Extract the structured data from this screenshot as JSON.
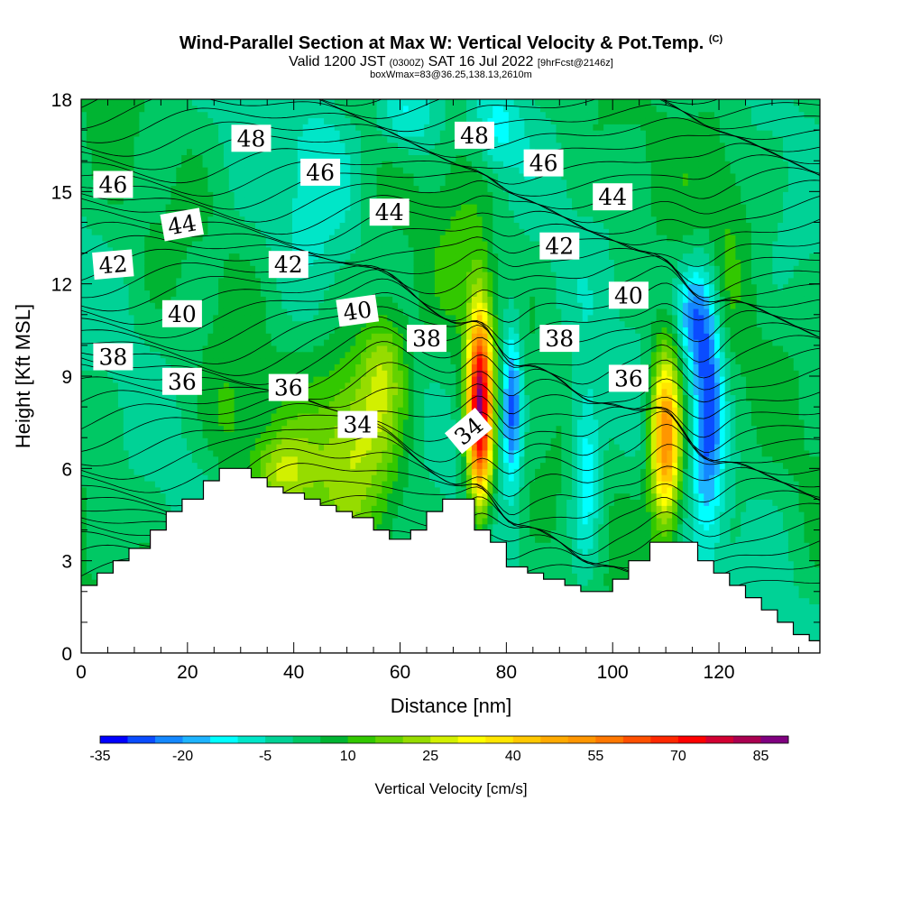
{
  "header": {
    "title": "Wind-Parallel Section at Max W: Vertical Velocity & Pot.Temp.",
    "copyright_mark": "(C)",
    "valid_main": "Valid 1200 JST",
    "valid_utc": "(0300Z)",
    "valid_date": "SAT 16 Jul 2022",
    "forecast_note": "[9hrFcst@2146z]",
    "box_note": "boxWmax=83@36.25,138.13,2610m"
  },
  "chart_data": {
    "type": "heatmap",
    "xlabel": "Distance [nm]",
    "ylabel": "Height [Kft MSL]",
    "xlim": [
      0,
      139
    ],
    "ylim": [
      0,
      18
    ],
    "x_ticks": [
      0,
      20,
      40,
      60,
      80,
      100,
      120
    ],
    "y_ticks": [
      0,
      3,
      6,
      9,
      12,
      15,
      18
    ],
    "colorbar": {
      "label": "Vertical Velocity [cm/s]",
      "tick_values": [
        -35,
        -20,
        -5,
        10,
        25,
        40,
        55,
        70,
        85
      ],
      "levels": [
        -35,
        -30,
        -25,
        -20,
        -15,
        -10,
        -5,
        0,
        5,
        10,
        15,
        20,
        25,
        30,
        35,
        40,
        45,
        50,
        55,
        60,
        65,
        70,
        75,
        80,
        85,
        90
      ],
      "colors": [
        "#0000ff",
        "#0a4cff",
        "#1488ff",
        "#1eb4ff",
        "#00ffff",
        "#00e6c8",
        "#00d296",
        "#00c864",
        "#00b432",
        "#32c800",
        "#64d200",
        "#96dc00",
        "#d2f000",
        "#ffff00",
        "#ffe600",
        "#ffc800",
        "#ffaa00",
        "#ff9600",
        "#ff7800",
        "#ff5000",
        "#ff2800",
        "#ff0000",
        "#d20032",
        "#aa0050",
        "#800080"
      ]
    },
    "terrain_height_kft": [
      {
        "x": 0,
        "h": 2.2
      },
      {
        "x": 3,
        "h": 2.6
      },
      {
        "x": 6,
        "h": 3.0
      },
      {
        "x": 9,
        "h": 3.4
      },
      {
        "x": 13,
        "h": 4.0
      },
      {
        "x": 16,
        "h": 4.6
      },
      {
        "x": 19,
        "h": 5.0
      },
      {
        "x": 23,
        "h": 5.6
      },
      {
        "x": 26,
        "h": 6.0
      },
      {
        "x": 30,
        "h": 6.0
      },
      {
        "x": 32,
        "h": 5.7
      },
      {
        "x": 35,
        "h": 5.4
      },
      {
        "x": 38,
        "h": 5.2
      },
      {
        "x": 42,
        "h": 5.0
      },
      {
        "x": 45,
        "h": 4.8
      },
      {
        "x": 48,
        "h": 4.6
      },
      {
        "x": 51,
        "h": 4.4
      },
      {
        "x": 55,
        "h": 4.0
      },
      {
        "x": 58,
        "h": 3.7
      },
      {
        "x": 62,
        "h": 4.0
      },
      {
        "x": 65,
        "h": 4.6
      },
      {
        "x": 68,
        "h": 5.0
      },
      {
        "x": 72,
        "h": 5.0
      },
      {
        "x": 74,
        "h": 4.0
      },
      {
        "x": 77,
        "h": 3.6
      },
      {
        "x": 80,
        "h": 2.8
      },
      {
        "x": 84,
        "h": 2.6
      },
      {
        "x": 87,
        "h": 2.4
      },
      {
        "x": 91,
        "h": 2.2
      },
      {
        "x": 94,
        "h": 2.0
      },
      {
        "x": 97,
        "h": 2.0
      },
      {
        "x": 100,
        "h": 2.4
      },
      {
        "x": 103,
        "h": 3.0
      },
      {
        "x": 107,
        "h": 3.6
      },
      {
        "x": 112,
        "h": 3.6
      },
      {
        "x": 116,
        "h": 3.0
      },
      {
        "x": 119,
        "h": 2.6
      },
      {
        "x": 122,
        "h": 2.2
      },
      {
        "x": 125,
        "h": 1.8
      },
      {
        "x": 128,
        "h": 1.4
      },
      {
        "x": 131,
        "h": 1.0
      },
      {
        "x": 134,
        "h": 0.6
      },
      {
        "x": 137,
        "h": 0.4
      },
      {
        "x": 139,
        "h": 0.4
      }
    ],
    "vertical_velocity_features": [
      {
        "x": 75,
        "z": 8.0,
        "sx": 1.6,
        "sz": 2.2,
        "w": 80
      },
      {
        "x": 110,
        "z": 7.0,
        "sx": 2.0,
        "sz": 2.0,
        "w": 55
      },
      {
        "x": 52,
        "z": 7.0,
        "sx": 6.0,
        "sz": 2.2,
        "w": 24
      },
      {
        "x": 57,
        "z": 9.5,
        "sx": 3.0,
        "sz": 1.5,
        "w": 16
      },
      {
        "x": 38,
        "z": 5.8,
        "sx": 4.0,
        "sz": 1.0,
        "w": 20
      },
      {
        "x": 28,
        "z": 7.5,
        "sx": 3.0,
        "sz": 1.5,
        "w": 8
      },
      {
        "x": 81,
        "z": 8.0,
        "sx": 1.4,
        "sz": 1.8,
        "w": -32
      },
      {
        "x": 95,
        "z": 6.0,
        "sx": 2.0,
        "sz": 2.2,
        "w": -18
      },
      {
        "x": 118,
        "z": 8.5,
        "sx": 2.0,
        "sz": 3.0,
        "w": -30
      },
      {
        "x": 115,
        "z": 11.0,
        "sx": 2.0,
        "sz": 1.2,
        "w": -22
      },
      {
        "x": 61,
        "z": 17.5,
        "sx": 4.0,
        "sz": 1.0,
        "w": -15
      },
      {
        "x": 78,
        "z": 17.0,
        "sx": 3.0,
        "sz": 1.0,
        "w": -12
      },
      {
        "x": 45,
        "z": 16.0,
        "sx": 5.0,
        "sz": 2.0,
        "w": -10
      },
      {
        "x": 120,
        "z": 15.0,
        "sx": 4.0,
        "sz": 3.0,
        "w": 8
      },
      {
        "x": 72,
        "z": 14.0,
        "sx": 4.0,
        "sz": 3.0,
        "w": 6
      }
    ],
    "theta_contour_labels": [
      {
        "text": "48",
        "x": 32,
        "z": 16.7,
        "rot": 0
      },
      {
        "text": "48",
        "x": 74,
        "z": 16.8,
        "rot": 0
      },
      {
        "text": "46",
        "x": 6,
        "z": 15.2,
        "rot": 0
      },
      {
        "text": "46",
        "x": 45,
        "z": 15.6,
        "rot": 0
      },
      {
        "text": "46",
        "x": 87,
        "z": 15.9,
        "rot": 0
      },
      {
        "text": "44",
        "x": 19,
        "z": 13.9,
        "rot": -10
      },
      {
        "text": "44",
        "x": 58,
        "z": 14.3,
        "rot": 0
      },
      {
        "text": "44",
        "x": 100,
        "z": 14.8,
        "rot": 0
      },
      {
        "text": "42",
        "x": 6,
        "z": 12.6,
        "rot": -5
      },
      {
        "text": "42",
        "x": 39,
        "z": 12.6,
        "rot": 0
      },
      {
        "text": "42",
        "x": 90,
        "z": 13.2,
        "rot": 0
      },
      {
        "text": "40",
        "x": 19,
        "z": 11.0,
        "rot": 0
      },
      {
        "text": "40",
        "x": 52,
        "z": 11.1,
        "rot": -8
      },
      {
        "text": "40",
        "x": 103,
        "z": 11.6,
        "rot": 0
      },
      {
        "text": "38",
        "x": 6,
        "z": 9.6,
        "rot": 0
      },
      {
        "text": "38",
        "x": 65,
        "z": 10.2,
        "rot": 0
      },
      {
        "text": "38",
        "x": 90,
        "z": 10.2,
        "rot": 0
      },
      {
        "text": "36",
        "x": 19,
        "z": 8.8,
        "rot": 0
      },
      {
        "text": "36",
        "x": 39,
        "z": 8.6,
        "rot": 0
      },
      {
        "text": "36",
        "x": 103,
        "z": 8.9,
        "rot": 0
      },
      {
        "text": "34",
        "x": 52,
        "z": 7.4,
        "rot": 0
      },
      {
        "text": "34",
        "x": 73,
        "z": 7.2,
        "rot": -40
      }
    ]
  }
}
